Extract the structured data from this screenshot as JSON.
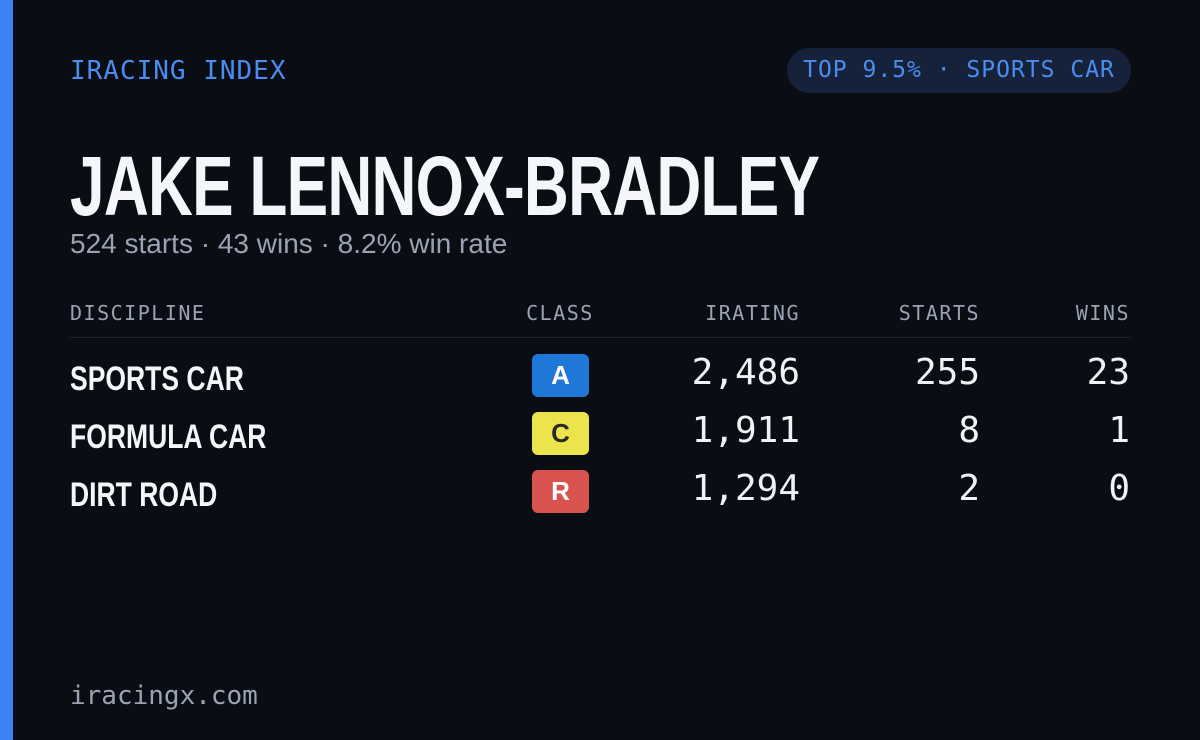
{
  "header": {
    "title": "IRACING INDEX",
    "badge": "TOP 9.5% · SPORTS CAR"
  },
  "driver": {
    "name": "JAKE LENNOX-BRADLEY",
    "summary": "524 starts · 43 wins · 8.2% win rate"
  },
  "table": {
    "columns": [
      "DISCIPLINE",
      "CLASS",
      "IRATING",
      "STARTS",
      "WINS"
    ],
    "rows": [
      {
        "discipline": "SPORTS CAR",
        "class": "A",
        "class_color": "#1f78d8",
        "irating": "2,486",
        "starts": 255,
        "wins": 23
      },
      {
        "discipline": "FORMULA CAR",
        "class": "C",
        "class_color": "#ece44c",
        "irating": "1,911",
        "starts": 8,
        "wins": 1
      },
      {
        "discipline": "DIRT ROAD",
        "class": "R",
        "class_color": "#d9534e",
        "irating": "1,294",
        "starts": 2,
        "wins": 0
      }
    ]
  },
  "footer": {
    "site": "iracingx.com"
  }
}
